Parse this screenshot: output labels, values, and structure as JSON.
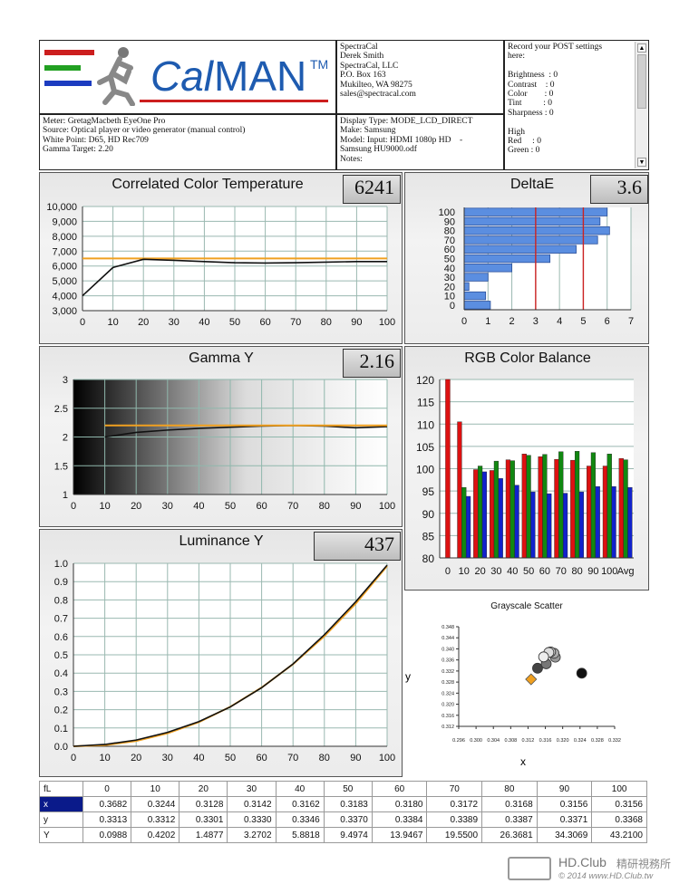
{
  "header": {
    "logo_text_cal": "Cal",
    "logo_text_man": "MAN",
    "logo_tm": "TM",
    "company": [
      "SpectraCal",
      "Derek Smith",
      "SpectraCal, LLC",
      "P.O. Box 163",
      "Mukilteo, WA 98275",
      "sales@spectracal.com"
    ],
    "meter": [
      "Meter: GretagMacbeth EyeOne Pro",
      "Source: Optical player or video generator (manual control)",
      "White Point: D65, HD Rec709",
      "Gamma Target: 2.20"
    ],
    "display": [
      "Display Type: MODE_LCD_DIRECT",
      "Make: Samsung",
      "Model: Input: HDMI 1080p HD    -",
      "Samsung HU9000.odf",
      "Notes:"
    ],
    "post_settings": [
      "Record your POST settings",
      "here:",
      "",
      "Brightness  : 0",
      "Contrast    : 0",
      "Color        : 0",
      "Tint          : 0",
      "Sharpness : 0",
      "",
      "High",
      "Red     : 0",
      "Green : 0"
    ]
  },
  "panels": {
    "cct": {
      "title": "Correlated Color Temperature",
      "value": "6241"
    },
    "deltae": {
      "title": "DeltaE",
      "value": "3.6"
    },
    "gamma": {
      "title": "Gamma Y",
      "value": "2.16"
    },
    "rgb": {
      "title": "RGB Color Balance"
    },
    "lum": {
      "title": "Luminance Y",
      "value": "437"
    },
    "scatter": {
      "title": "Grayscale Scatter",
      "xlabel": "x",
      "ylabel": "y"
    }
  },
  "colors": {
    "orange": "#f0a020",
    "black": "#111111",
    "bar_blue": "#5b8ee0",
    "red_line": "#cc2222",
    "r": "#dd1111",
    "g": "#118811",
    "b": "#1122cc"
  },
  "chart_data": [
    {
      "type": "line",
      "title": "Correlated Color Temperature",
      "x": [
        0,
        10,
        20,
        30,
        40,
        50,
        60,
        70,
        80,
        90,
        100
      ],
      "series": [
        {
          "values": [
            4000,
            5900,
            6450,
            6380,
            6300,
            6220,
            6200,
            6220,
            6260,
            6300,
            6300
          ]
        },
        {
          "values": [
            6504,
            6504,
            6504,
            6504,
            6504,
            6504,
            6504,
            6504,
            6504,
            6504,
            6504
          ]
        }
      ],
      "ylim": [
        3000,
        10000
      ],
      "yticks": [
        "10,000",
        "9,000",
        "8,000",
        "7,000",
        "6,000",
        "5,000",
        "4,000",
        "3,000"
      ],
      "xticks": [
        "0",
        "10",
        "20",
        "30",
        "40",
        "50",
        "60",
        "70",
        "80",
        "90",
        "100"
      ]
    },
    {
      "type": "bar",
      "title": "DeltaE",
      "orientation": "horizontal",
      "categories": [
        "0",
        "10",
        "20",
        "30",
        "40",
        "50",
        "60",
        "70",
        "80",
        "90",
        "100"
      ],
      "values": [
        1.1,
        0.9,
        0.2,
        1.0,
        2.0,
        3.6,
        4.7,
        5.6,
        6.1,
        5.7,
        6.0
      ],
      "xlim": [
        0,
        7
      ],
      "xticks": [
        "0",
        "1",
        "2",
        "3",
        "4",
        "5",
        "6",
        "7"
      ],
      "reference_lines": [
        3,
        5
      ]
    },
    {
      "type": "line",
      "title": "Gamma Y",
      "x": [
        10,
        20,
        30,
        40,
        50,
        60,
        70,
        80,
        90,
        100
      ],
      "series": [
        {
          "values": [
            2.0,
            2.08,
            2.12,
            2.15,
            2.17,
            2.19,
            2.2,
            2.19,
            2.16,
            2.18
          ]
        },
        {
          "values": [
            2.2,
            2.2,
            2.2,
            2.2,
            2.2,
            2.2,
            2.2,
            2.2,
            2.2,
            2.2
          ]
        }
      ],
      "ylim": [
        1,
        3
      ],
      "yticks": [
        "3",
        "2.5",
        "2",
        "1.5",
        "1"
      ],
      "xticks": [
        "0",
        "10",
        "20",
        "30",
        "40",
        "50",
        "60",
        "70",
        "80",
        "90",
        "100"
      ]
    },
    {
      "type": "bar",
      "title": "RGB Color Balance",
      "categories": [
        "10",
        "20",
        "30",
        "40",
        "50",
        "60",
        "70",
        "80",
        "90",
        "100",
        "Avg"
      ],
      "series": [
        {
          "name": "R",
          "values": [
            110.5,
            99.8,
            99.6,
            102.0,
            103.3,
            102.7,
            102.1,
            101.9,
            100.6,
            100.6,
            102.3
          ]
        },
        {
          "name": "G",
          "values": [
            95.8,
            100.6,
            101.7,
            101.8,
            103.0,
            103.2,
            103.8,
            103.9,
            103.6,
            103.3,
            102.0
          ]
        },
        {
          "name": "B",
          "values": [
            93.8,
            99.3,
            97.8,
            96.3,
            94.8,
            94.4,
            94.5,
            94.8,
            96.0,
            96.0,
            95.8
          ]
        }
      ],
      "first_red": 120,
      "ylim": [
        80,
        120
      ],
      "yticks": [
        "120",
        "115",
        "110",
        "105",
        "100",
        "95",
        "90",
        "85",
        "80"
      ],
      "xticks": [
        "0",
        "10",
        "20",
        "30",
        "40",
        "50",
        "60",
        "70",
        "80",
        "90",
        "100",
        "Avg"
      ]
    },
    {
      "type": "line",
      "title": "Luminance Y",
      "x": [
        0,
        10,
        20,
        30,
        40,
        50,
        60,
        70,
        80,
        90,
        100
      ],
      "series": [
        {
          "values": [
            0.0,
            0.01,
            0.034,
            0.076,
            0.135,
            0.215,
            0.32,
            0.45,
            0.61,
            0.79,
            0.99
          ]
        },
        {
          "values": [
            0.0,
            0.006,
            0.029,
            0.071,
            0.132,
            0.216,
            0.321,
            0.449,
            0.602,
            0.78,
            0.985
          ]
        }
      ],
      "ylim": [
        0,
        1
      ],
      "yticks": [
        "1.0",
        "0.9",
        "0.8",
        "0.7",
        "0.6",
        "0.5",
        "0.4",
        "0.3",
        "0.2",
        "0.1",
        "0.0"
      ],
      "xticks": [
        "0",
        "10",
        "20",
        "30",
        "40",
        "50",
        "60",
        "70",
        "80",
        "90",
        "100"
      ]
    },
    {
      "type": "scatter",
      "title": "Grayscale Scatter",
      "points": [
        {
          "x": 0.3142,
          "y": 0.333,
          "color": "#444444"
        },
        {
          "x": 0.3162,
          "y": 0.3346,
          "color": "#777777"
        },
        {
          "x": 0.3183,
          "y": 0.337,
          "color": "#999999"
        },
        {
          "x": 0.318,
          "y": 0.3384,
          "color": "#aaaaaa"
        },
        {
          "x": 0.3172,
          "y": 0.3389,
          "color": "#cccccc"
        },
        {
          "x": 0.3168,
          "y": 0.3387,
          "color": "#dddddd"
        },
        {
          "x": 0.3156,
          "y": 0.3371,
          "color": "#eeeeee"
        },
        {
          "x": 0.3244,
          "y": 0.3312,
          "color": "#111111"
        },
        {
          "x": 0.3127,
          "y": 0.329,
          "color": "#f0a020",
          "shape": "diamond"
        }
      ],
      "xlim": [
        0.296,
        0.332
      ],
      "ylim": [
        0.312,
        0.348
      ],
      "xticks": [
        "0.296",
        "0.300",
        "0.304",
        "0.308",
        "0.312",
        "0.316",
        "0.320",
        "0.324",
        "0.328",
        "0.332"
      ],
      "yticks": [
        "0.348",
        "0.344",
        "0.340",
        "0.336",
        "0.332",
        "0.328",
        "0.324",
        "0.320",
        "0.316",
        "0.312"
      ]
    }
  ],
  "table": {
    "header_label": "fL",
    "columns": [
      "0",
      "10",
      "20",
      "30",
      "40",
      "50",
      "60",
      "70",
      "80",
      "90",
      "100"
    ],
    "rows": [
      {
        "label": "x",
        "values": [
          "0.3682",
          "0.3244",
          "0.3128",
          "0.3142",
          "0.3162",
          "0.3183",
          "0.3180",
          "0.3172",
          "0.3168",
          "0.3156",
          "0.3156"
        ]
      },
      {
        "label": "y",
        "values": [
          "0.3313",
          "0.3312",
          "0.3301",
          "0.3330",
          "0.3346",
          "0.3370",
          "0.3384",
          "0.3389",
          "0.3387",
          "0.3371",
          "0.3368"
        ]
      },
      {
        "label": "Y",
        "values": [
          "0.0988",
          "0.4202",
          "1.4877",
          "3.2702",
          "5.8818",
          "9.4974",
          "13.9467",
          "19.5500",
          "26.3681",
          "34.3069",
          "43.2100"
        ]
      }
    ]
  },
  "watermark": {
    "brand": "HD.Club",
    "cjk": "精研視務所",
    "copyright": "© 2014  www.HD.Club.tw"
  }
}
